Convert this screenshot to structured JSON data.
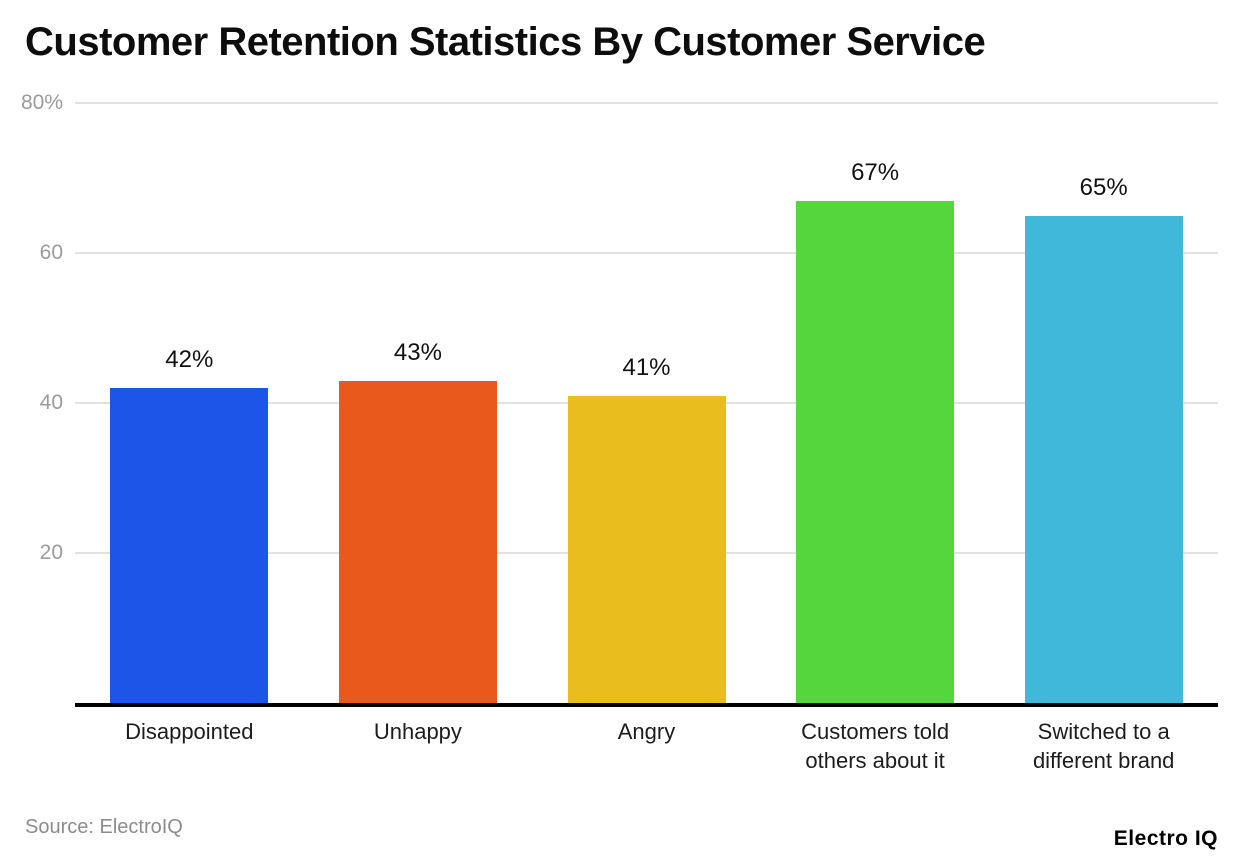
{
  "page": {
    "title": "Customer Retention Statistics By Customer Service",
    "footer": {
      "source_note": "Source: ElectroIQ",
      "brand": "Electro IQ"
    }
  },
  "chart_data": {
    "type": "bar",
    "title": "Customer Retention Statistics By Customer Service",
    "categories": [
      "Disappointed",
      "Unhappy",
      "Angry",
      "Customers told others about it",
      "Switched to a different brand"
    ],
    "values": [
      42,
      43,
      41,
      67,
      65
    ],
    "value_labels": [
      "42%",
      "43%",
      "41%",
      "67%",
      "65%"
    ],
    "bar_colors": [
      "#1b56e9",
      "#e9591b",
      "#eabd1e",
      "#55d63c",
      "#3fb8d9"
    ],
    "xlabel": "",
    "ylabel": "",
    "ylim": [
      0,
      80
    ],
    "y_ticks": [
      20,
      40,
      60,
      80
    ],
    "y_tick_labels": [
      "20",
      "40",
      "60",
      "80%"
    ],
    "grid": true,
    "legend": "none",
    "colors": {
      "gridline": "#e2e2e2",
      "axis_line": "#000000",
      "tick_label": "#9b9b9b",
      "value_label": "#111111",
      "category_label": "#1c1c1c",
      "source_text": "#8c8c8c",
      "brand_text": "#000000"
    }
  }
}
